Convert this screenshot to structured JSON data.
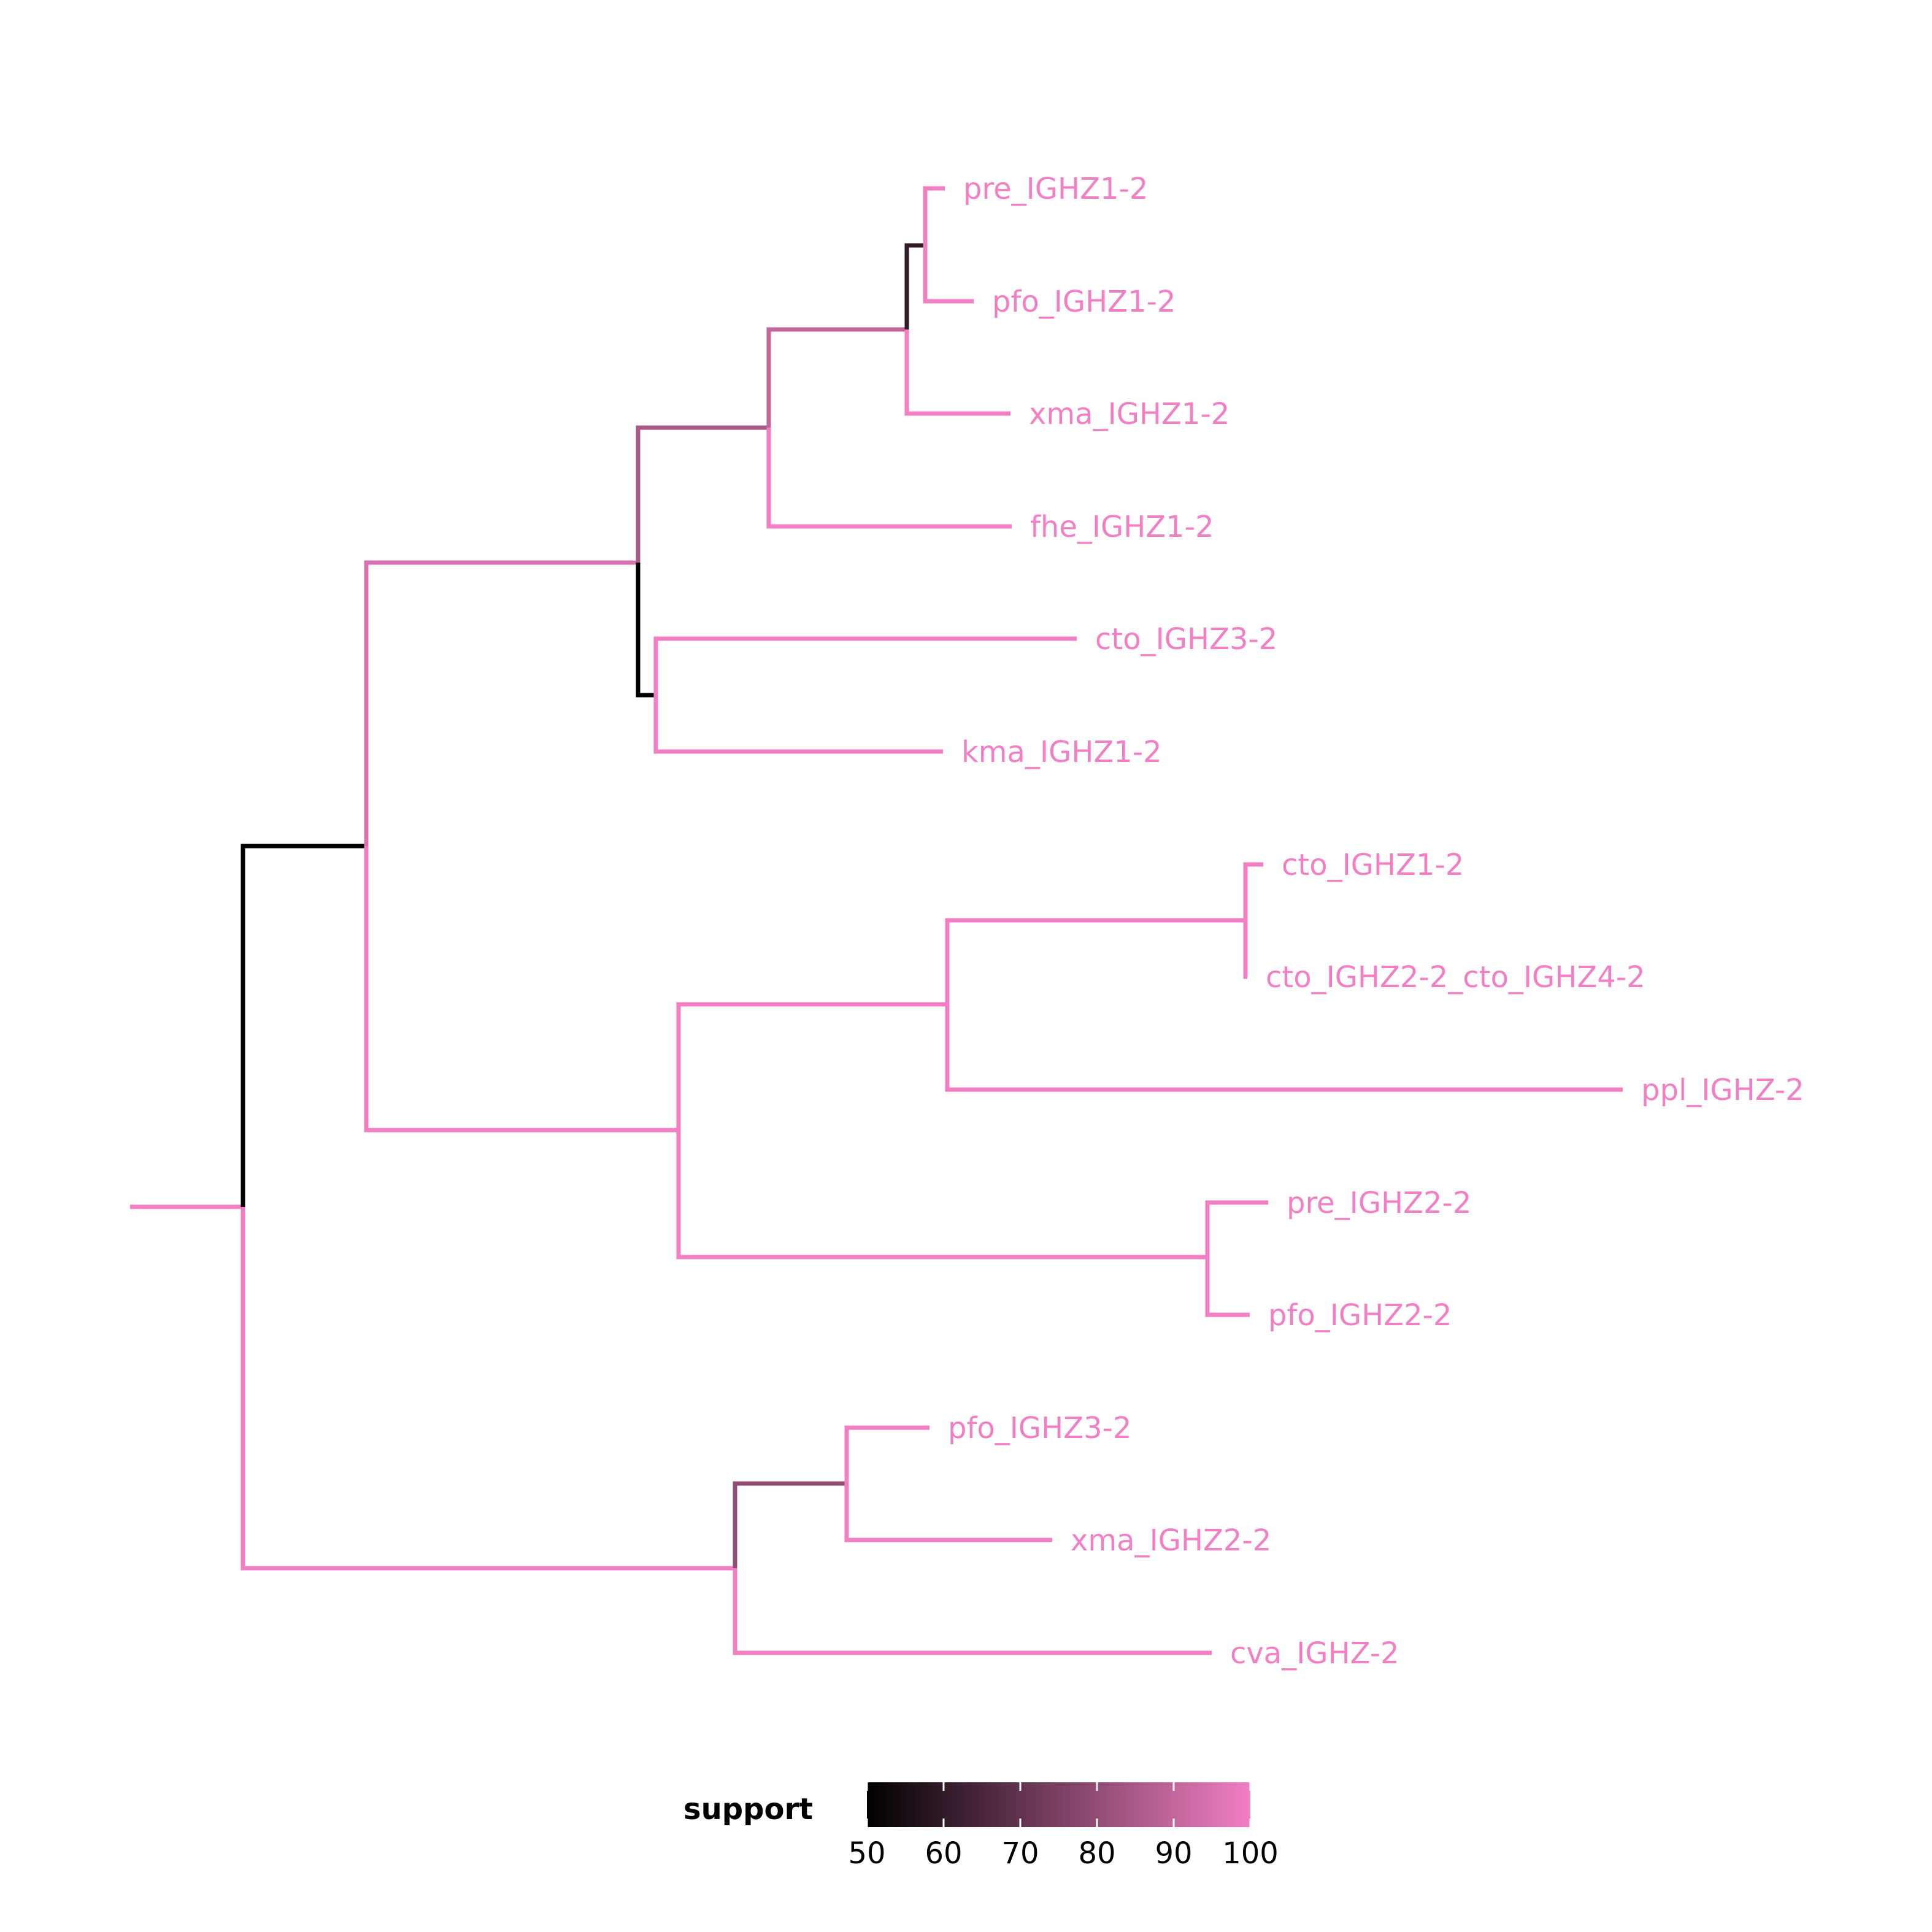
{
  "tree": {
    "edges": [
      {
        "id": "root-stem",
        "support": 100
      },
      {
        "id": "n1",
        "support": 50
      },
      {
        "id": "n2",
        "support": 95
      },
      {
        "id": "n3",
        "support": 85
      },
      {
        "id": "n4",
        "support": 90
      },
      {
        "id": "n5",
        "support": 60
      },
      {
        "id": "n6",
        "support": 50
      },
      {
        "id": "n7",
        "support": 100
      },
      {
        "id": "n8",
        "support": 100
      },
      {
        "id": "n9",
        "support": 100
      },
      {
        "id": "n10",
        "support": 100
      },
      {
        "id": "n11",
        "support": 100
      },
      {
        "id": "n12",
        "support": 80
      }
    ],
    "tips": [
      {
        "id": "t-pre1",
        "label": "pre_IGHZ1-2"
      },
      {
        "id": "t-pfo1",
        "label": "pfo_IGHZ1-2"
      },
      {
        "id": "t-xma1",
        "label": "xma_IGHZ1-2"
      },
      {
        "id": "t-fhe1",
        "label": "fhe_IGHZ1-2"
      },
      {
        "id": "t-cto3",
        "label": "cto_IGHZ3-2"
      },
      {
        "id": "t-kma1",
        "label": "kma_IGHZ1-2"
      },
      {
        "id": "t-cto1",
        "label": "cto_IGHZ1-2"
      },
      {
        "id": "t-cto24",
        "label": "cto_IGHZ2-2_cto_IGHZ4-2"
      },
      {
        "id": "t-ppl",
        "label": "ppl_IGHZ-2"
      },
      {
        "id": "t-pre2",
        "label": "pre_IGHZ2-2"
      },
      {
        "id": "t-pfo2",
        "label": "pfo_IGHZ2-2"
      },
      {
        "id": "t-pfo3",
        "label": "pfo_IGHZ3-2"
      },
      {
        "id": "t-xma2",
        "label": "xma_IGHZ2-2"
      },
      {
        "id": "t-cva",
        "label": "cva_IGHZ-2"
      }
    ]
  },
  "legend": {
    "title": "support",
    "min": 50,
    "max": 100,
    "ticks": [
      "50",
      "60",
      "70",
      "80",
      "90",
      "100"
    ],
    "colors": {
      "low": "#000000",
      "high": "#F27FC4"
    }
  }
}
